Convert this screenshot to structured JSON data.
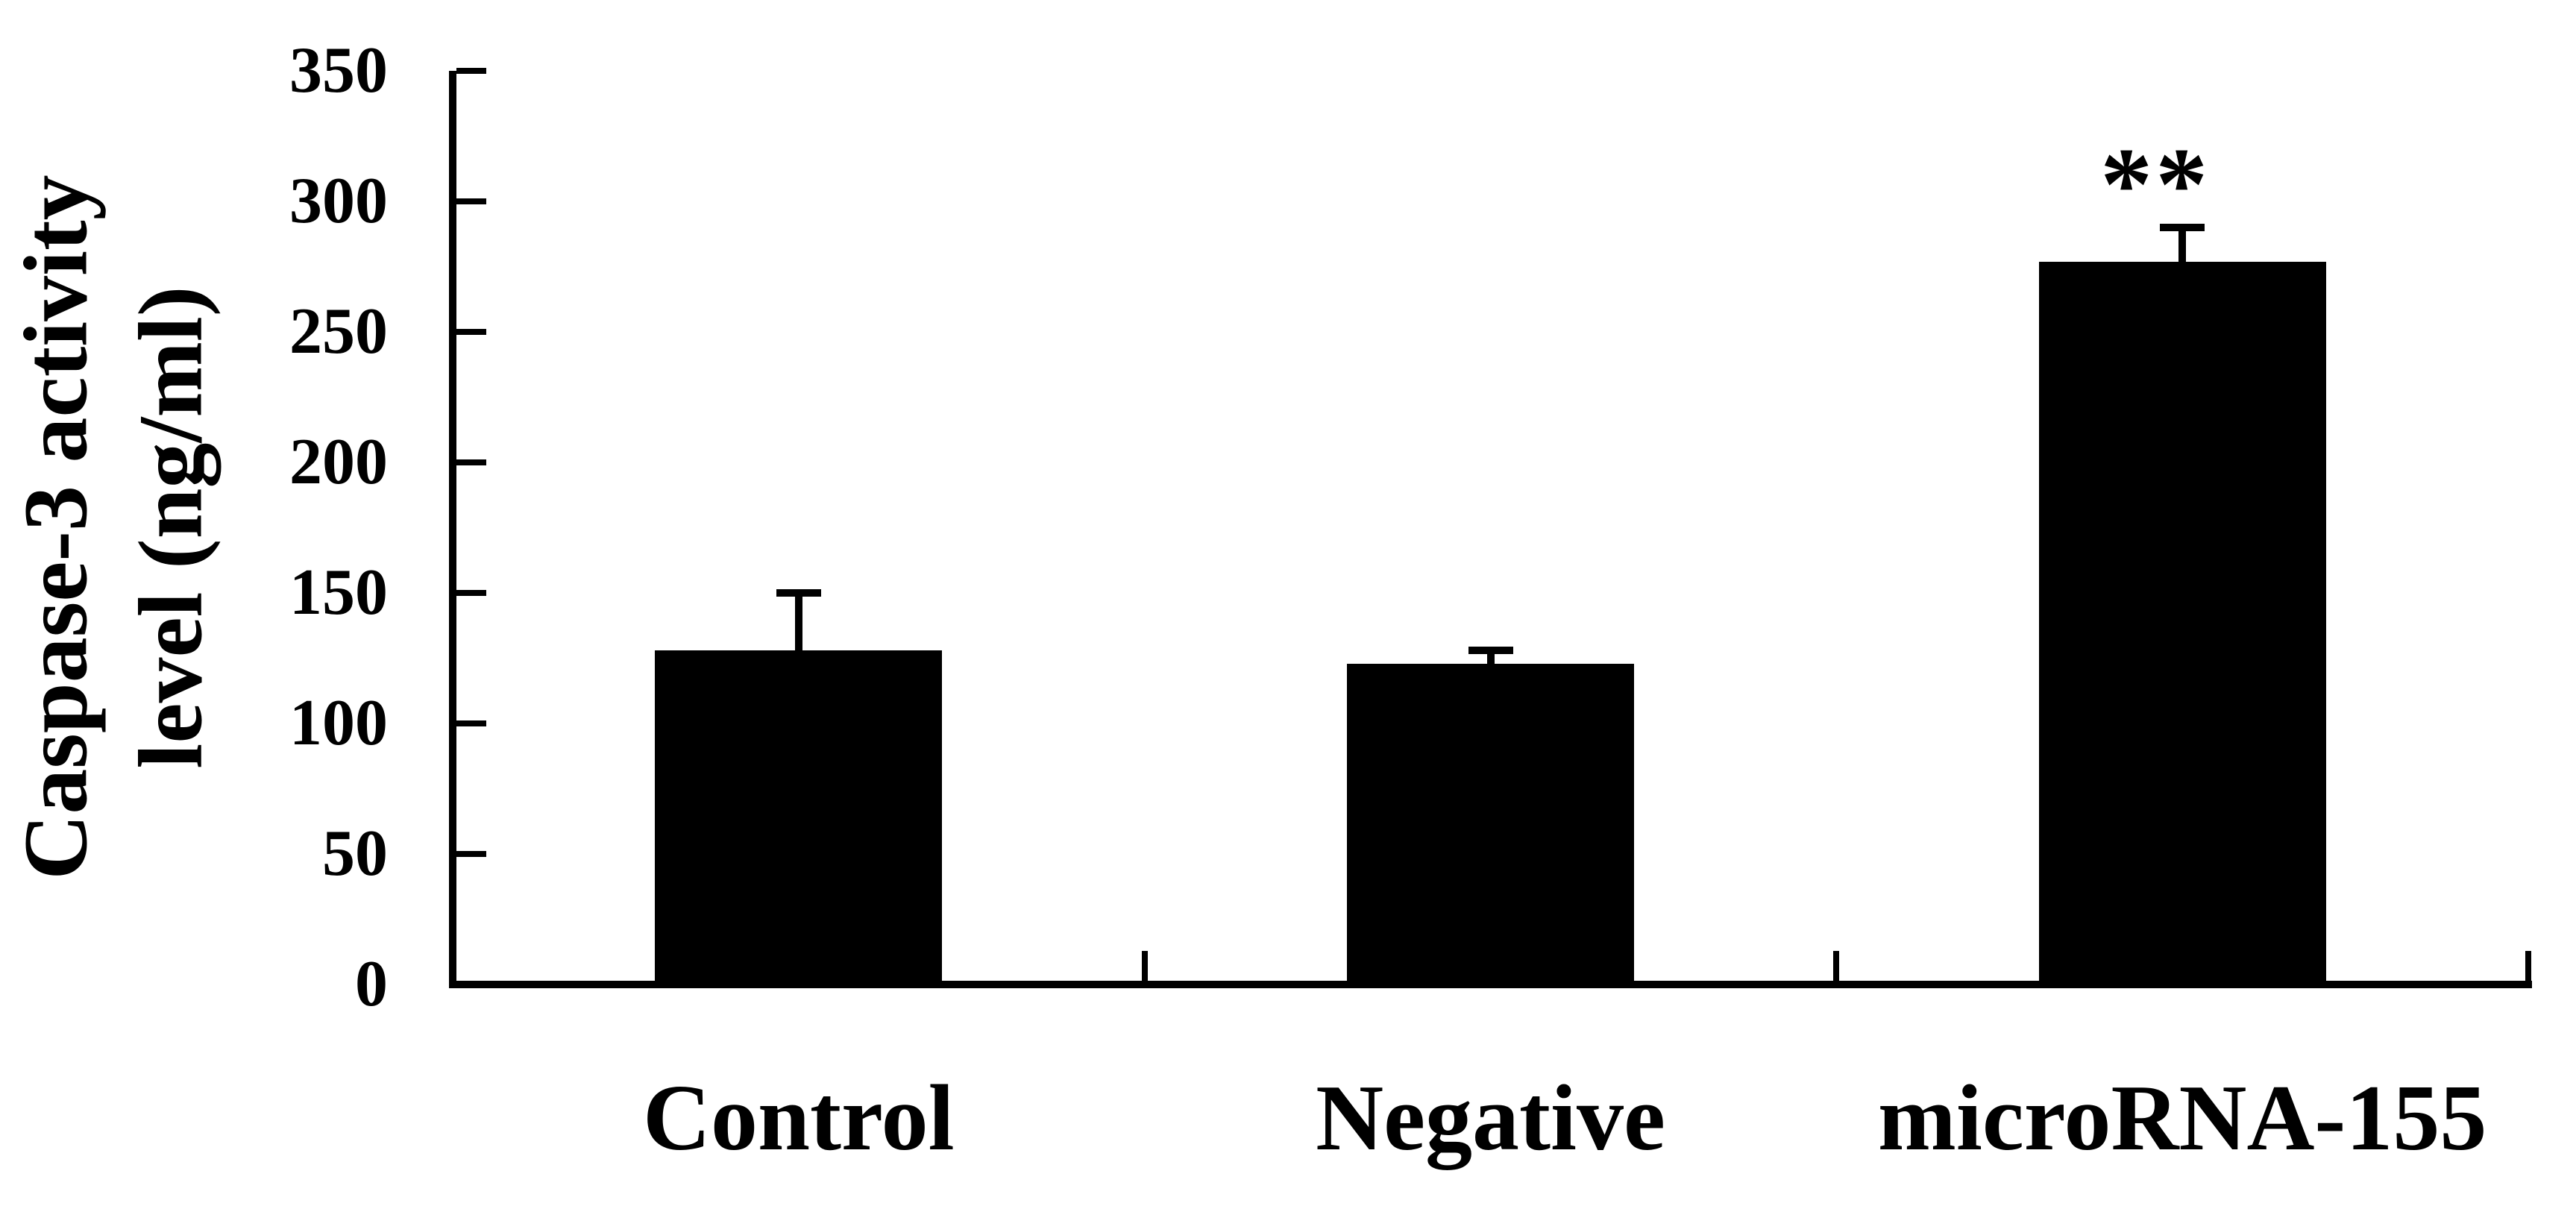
{
  "figure": {
    "background": "#ffffff",
    "ink": "#000000"
  },
  "chart_data": {
    "type": "bar",
    "title": "",
    "categories": [
      "Control",
      "Negative",
      "microRNA-155"
    ],
    "values": [
      128,
      123,
      277
    ],
    "errors_plus": [
      22,
      5,
      13
    ],
    "bar_color": "#000000",
    "ylabel_line1": "Caspase-3 activity",
    "ylabel_line2": "level (ng/ml)",
    "xlabel": "",
    "ylim": [
      0,
      350
    ],
    "yticks": [
      0,
      50,
      100,
      150,
      200,
      250,
      300,
      350
    ],
    "grid": false,
    "legend": "none",
    "tick_direction": "in",
    "annotations": [
      {
        "category_index": 2,
        "text": "**"
      }
    ]
  }
}
